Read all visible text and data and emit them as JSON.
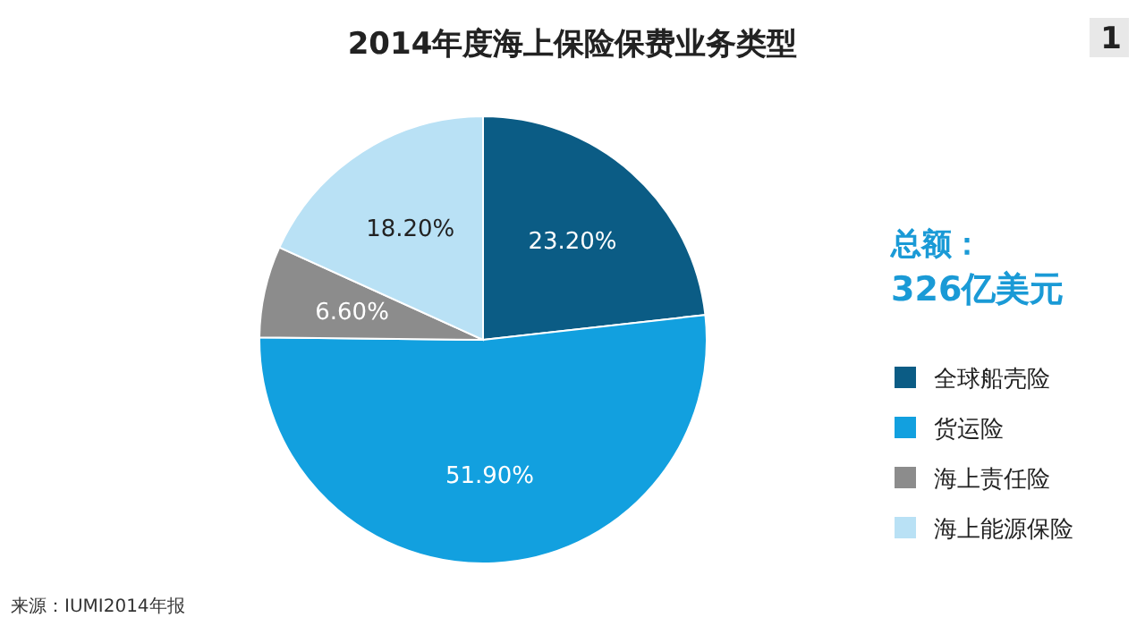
{
  "chart_data": {
    "type": "pie",
    "title": "2014年度海上保险保费业务类型",
    "categories": [
      "全球船壳险",
      "货运险",
      "海上责任险",
      "海上能源保险"
    ],
    "values": [
      23.2,
      51.9,
      6.6,
      18.2
    ],
    "value_labels": [
      "23.20%",
      "51.90%",
      "6.60%",
      "18.20%"
    ],
    "colors": [
      "#0b5c85",
      "#12a0df",
      "#8c8c8c",
      "#b9e1f5"
    ],
    "legend": "right",
    "annotations": [
      "1",
      "总额：",
      "326亿美元",
      "来源：IUMI2014年报"
    ]
  }
}
